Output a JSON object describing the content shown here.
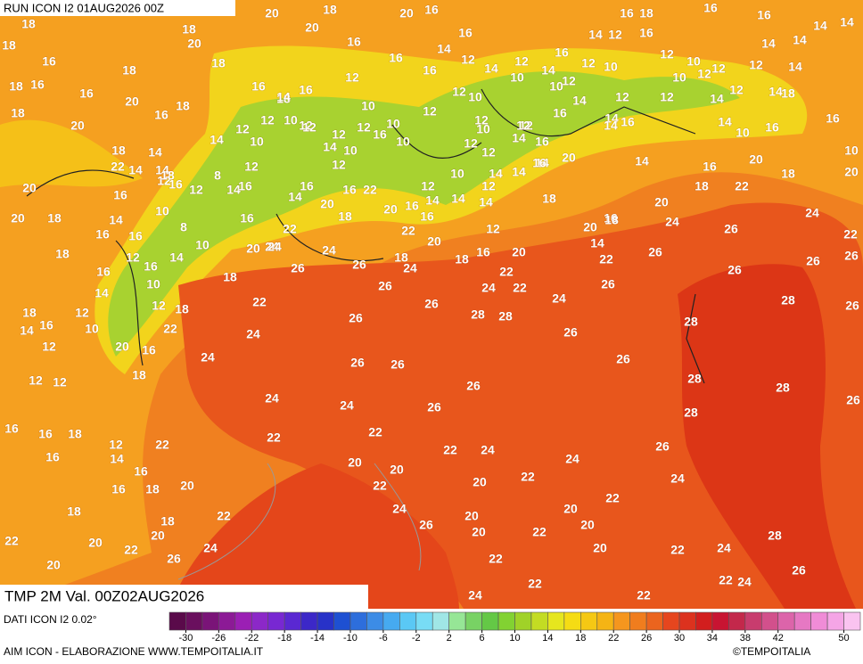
{
  "header": {
    "run": "RUN ICON I2 01AUG2026 00Z"
  },
  "map": {
    "title": "TMP 2M Val. 00Z02AUG2026",
    "temperature_labels": [
      20,
      18,
      20,
      16,
      16,
      18,
      16,
      16,
      18,
      18,
      20,
      16,
      14,
      12,
      16,
      14,
      14,
      18,
      20,
      16,
      14,
      14,
      14,
      16,
      16,
      18,
      18,
      16,
      16,
      12,
      14,
      12,
      14,
      12,
      10,
      12,
      10,
      12,
      12,
      14,
      18,
      16,
      16,
      16,
      18,
      16,
      12,
      12,
      10,
      10,
      10,
      12,
      10,
      12,
      14,
      20,
      14,
      10,
      12,
      14,
      12,
      12,
      14,
      12,
      18,
      18,
      16,
      18,
      12,
      12,
      10,
      12,
      12,
      16,
      14,
      16,
      14,
      16,
      20,
      12,
      10,
      12,
      12,
      16,
      10,
      12,
      14,
      10,
      16,
      14,
      10,
      14,
      12,
      10,
      12,
      14,
      16,
      18,
      14,
      10,
      12,
      14,
      20,
      10,
      22,
      14,
      14,
      8,
      12,
      12,
      14,
      16,
      14,
      16,
      20,
      20,
      20,
      12,
      10,
      14,
      18,
      16,
      12,
      14,
      16,
      16,
      22,
      12,
      14,
      12,
      18,
      22,
      18,
      16,
      16,
      14,
      20,
      16,
      14,
      18,
      20,
      20,
      18,
      14,
      10,
      16,
      18,
      20,
      16,
      14,
      16,
      24,
      16,
      16,
      8,
      22,
      24,
      22,
      12,
      20,
      18,
      24,
      26,
      22,
      18,
      10,
      20,
      24,
      24,
      18,
      20,
      14,
      26,
      26,
      12,
      16,
      14,
      26,
      26,
      24,
      18,
      16,
      20,
      22,
      26,
      16,
      18,
      22,
      26,
      10,
      14,
      26,
      24,
      22,
      26,
      12,
      18,
      22,
      26,
      28,
      28,
      24,
      28,
      26,
      18,
      12,
      14,
      16,
      10,
      22,
      26,
      28,
      24,
      26,
      12,
      20,
      16,
      24,
      26,
      26,
      26,
      12,
      12,
      18,
      28,
      26,
      28,
      24,
      26,
      24,
      26,
      28,
      16,
      16,
      18,
      22,
      22,
      12,
      22,
      26,
      22,
      24,
      16,
      14,
      24,
      20,
      20,
      16,
      22,
      24,
      20,
      16,
      18,
      20,
      22,
      22,
      24,
      20,
      18,
      22,
      20,
      18,
      26,
      20,
      20,
      22,
      20,
      28,
      22,
      20,
      22,
      24,
      20,
      24,
      22,
      26,
      22,
      20,
      26,
      22,
      24,
      22,
      24,
      22
    ]
  },
  "colorbar": {
    "range": [
      -32,
      52
    ],
    "colors": [
      "#5a0a4a",
      "#6a0f5e",
      "#7a1478",
      "#8c1a96",
      "#9b1fb4",
      "#8c28c8",
      "#7828d2",
      "#5a28d2",
      "#3c28c8",
      "#2832c8",
      "#1e50d2",
      "#2d6edc",
      "#3c8ce6",
      "#46aaf0",
      "#5ac8f5",
      "#78dcf5",
      "#a0e6e6",
      "#96e696",
      "#78d264",
      "#64c846",
      "#82d232",
      "#a0d228",
      "#c3dc23",
      "#e6e61e",
      "#f5dc14",
      "#f5c814",
      "#f5b414",
      "#f5961e",
      "#f07d1e",
      "#eb641e",
      "#e6461e",
      "#dc321e",
      "#d21e1e",
      "#c81432",
      "#c3284b",
      "#c83c6e",
      "#d2508c",
      "#dc64aa",
      "#e678c3",
      "#f08cd7",
      "#f5a5e6",
      "#fac3f0"
    ],
    "ticks": [
      -30,
      -26,
      -22,
      -18,
      -14,
      -10,
      -6,
      -2,
      2,
      6,
      10,
      14,
      18,
      22,
      26,
      30,
      34,
      38,
      42,
      50
    ]
  },
  "footer": {
    "source": "DATI ICON I2 0.02°",
    "credits": "AIM ICON - ELABORAZIONE WWW.TEMPOITALIA.IT",
    "copyright": "©TEMPOITALIA"
  }
}
